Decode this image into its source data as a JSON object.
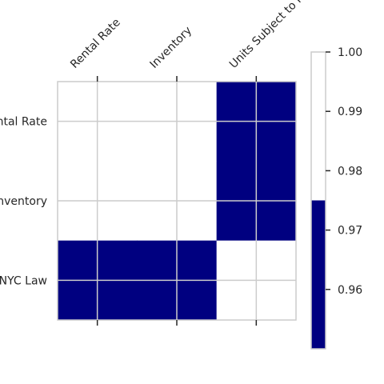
{
  "chart_data": {
    "type": "heatmap",
    "title": "",
    "xlabel": "",
    "ylabel": "",
    "x_labels": [
      "Rental Rate",
      "Inventory",
      "Units Subject to NYC Law"
    ],
    "y_labels": [
      "Rental Rate",
      "Inventory",
      "Units Subject to NYC Law"
    ],
    "x_labels_visible": [
      "Rental Rate",
      "Inventory",
      "Units Subject to N"
    ],
    "y_labels_visible": [
      "ntal Rate",
      "nventory",
      "NYC Law"
    ],
    "values": [
      [
        1.0,
        1.0,
        0.95
      ],
      [
        1.0,
        1.0,
        0.95
      ],
      [
        0.95,
        0.95,
        1.0
      ]
    ],
    "colormap": [
      "#00007f",
      "#ffffff"
    ],
    "colorbar": {
      "range": [
        0.95,
        1.0
      ],
      "threshold": 0.975,
      "ticks": [
        0.96,
        0.97,
        0.98,
        0.99,
        1.0
      ],
      "tick_labels": [
        "0.96",
        "0.97",
        "0.98",
        "0.99",
        "1.00"
      ]
    },
    "grid": true,
    "colors": {
      "low": "#000080",
      "high": "#ffffff",
      "grid": "#cccccc",
      "text": "#262626"
    }
  }
}
